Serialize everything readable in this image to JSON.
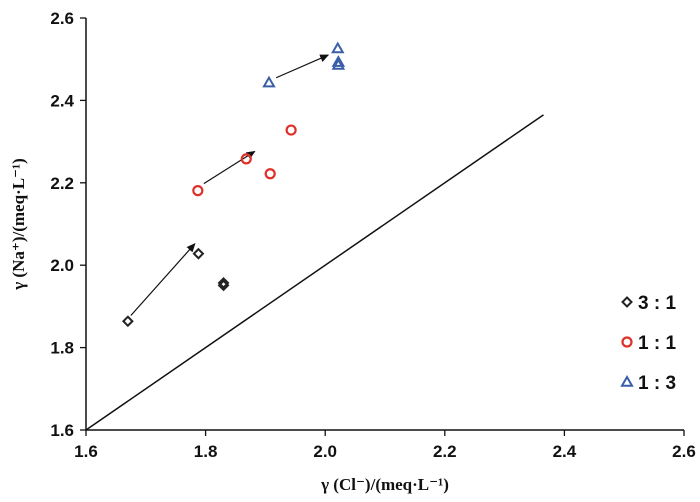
{
  "chart_data": {
    "type": "scatter",
    "title": "",
    "xlabel": "γ (Cl⁻)/(meq·L⁻¹)",
    "ylabel": "γ (Na⁺)/(meq·L⁻¹)",
    "xlim": [
      1.6,
      2.6
    ],
    "ylim": [
      1.6,
      2.6
    ],
    "xticks": [
      "1.6",
      "1.8",
      "2.0",
      "2.2",
      "2.4",
      "2.6"
    ],
    "yticks": [
      "1.6",
      "1.8",
      "2.0",
      "2.2",
      "2.4",
      "2.6"
    ],
    "xtick_values": [
      1.6,
      1.8,
      2.0,
      2.2,
      2.4,
      2.6
    ],
    "ytick_values": [
      1.6,
      1.8,
      2.0,
      2.2,
      2.4,
      2.6
    ],
    "grid": false,
    "legend_position": "right",
    "series": [
      {
        "name": "3 : 1",
        "marker": "diamond",
        "color": "#222222",
        "points": [
          [
            1.67,
            1.864
          ],
          [
            1.788,
            2.028
          ],
          [
            1.83,
            1.957
          ],
          [
            1.83,
            1.951
          ]
        ]
      },
      {
        "name": "1 : 1",
        "marker": "circle",
        "color": "#e0302a",
        "points": [
          [
            1.787,
            2.181
          ],
          [
            1.868,
            2.258
          ],
          [
            1.908,
            2.222
          ],
          [
            1.943,
            2.328
          ]
        ]
      },
      {
        "name": "1 : 3",
        "marker": "triangle",
        "color": "#3a5fa8",
        "points": [
          [
            1.906,
            2.443
          ],
          [
            2.021,
            2.526
          ],
          [
            2.022,
            2.493
          ],
          [
            2.022,
            2.486
          ]
        ]
      }
    ],
    "reference_line": {
      "from": [
        1.6,
        1.6
      ],
      "to": [
        2.365,
        2.365
      ]
    },
    "arrows": [
      {
        "from": [
          1.675,
          1.878
        ],
        "to": [
          1.782,
          2.052
        ]
      },
      {
        "from": [
          1.797,
          2.198
        ],
        "to": [
          1.882,
          2.276
        ]
      },
      {
        "from": [
          1.918,
          2.455
        ],
        "to": [
          2.005,
          2.51
        ]
      }
    ]
  }
}
